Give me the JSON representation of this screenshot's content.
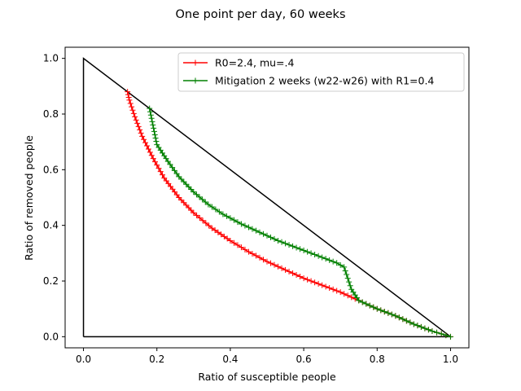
{
  "chart_data": {
    "type": "line",
    "title": "One point per day, 60 weeks",
    "xlabel": "Ratio of susceptible people",
    "ylabel": "Ratio of removed people",
    "xlim": [
      -0.05,
      1.05
    ],
    "ylim": [
      -0.04,
      1.04
    ],
    "xticks": [
      "0.0",
      "0.2",
      "0.4",
      "0.6",
      "0.8",
      "1.0"
    ],
    "yticks": [
      "0.0",
      "0.2",
      "0.4",
      "0.6",
      "0.8",
      "1.0"
    ],
    "legend_position": "top-right",
    "triangle": {
      "x": [
        0,
        1,
        0,
        0
      ],
      "y": [
        0,
        0,
        1,
        0
      ],
      "color": "#000000"
    },
    "series": [
      {
        "name": "R0=2.4, mu=.4",
        "color": "#ff0000",
        "marker": "+",
        "x": [
          1.0,
          0.95,
          0.9,
          0.85,
          0.8,
          0.75,
          0.7,
          0.65,
          0.6,
          0.55,
          0.5,
          0.45,
          0.4,
          0.35,
          0.3,
          0.26,
          0.22,
          0.19,
          0.16,
          0.14,
          0.125,
          0.12
        ],
        "y": [
          0.0,
          0.02,
          0.045,
          0.075,
          0.1,
          0.13,
          0.16,
          0.185,
          0.21,
          0.24,
          0.27,
          0.305,
          0.345,
          0.39,
          0.445,
          0.5,
          0.57,
          0.64,
          0.72,
          0.79,
          0.85,
          0.88
        ]
      },
      {
        "name": "Mitigation 2 weeks (w22-w26) with R1=0.4",
        "color": "#008000",
        "marker": "+",
        "x": [
          1.0,
          0.95,
          0.9,
          0.85,
          0.8,
          0.75,
          0.73,
          0.72,
          0.71,
          0.69,
          0.66,
          0.62,
          0.58,
          0.53,
          0.48,
          0.43,
          0.38,
          0.34,
          0.3,
          0.26,
          0.23,
          0.2,
          0.18
        ],
        "y": [
          0.0,
          0.02,
          0.045,
          0.075,
          0.1,
          0.13,
          0.17,
          0.21,
          0.25,
          0.265,
          0.28,
          0.3,
          0.32,
          0.345,
          0.375,
          0.405,
          0.44,
          0.475,
          0.52,
          0.575,
          0.63,
          0.69,
          0.82
        ]
      }
    ]
  }
}
